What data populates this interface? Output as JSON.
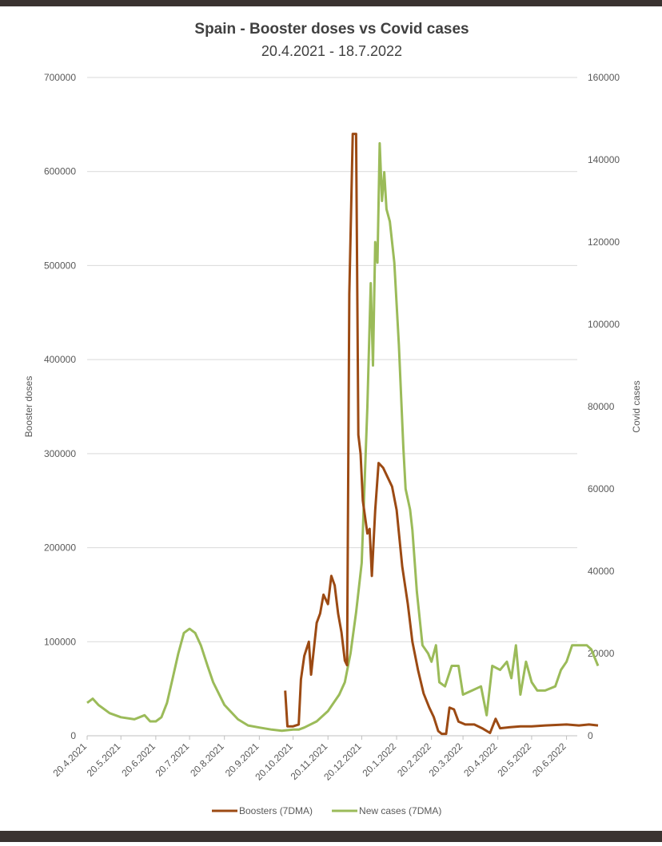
{
  "chart_data": {
    "type": "line",
    "title": "Spain - Booster doses vs Covid cases",
    "subtitle": "20.4.2021 - 18.7.2022",
    "y_label": "Booster doses",
    "y2_label": "Covid cases",
    "xlim": [
      "20.4.2021",
      "18.7.2022"
    ],
    "xticks": [
      "20.4.2021",
      "20.5.2021",
      "20.6.2021",
      "20.7.2021",
      "20.8.2021",
      "20.9.2021",
      "20.10.2021",
      "20.11.2021",
      "20.12.2021",
      "20.1.2022",
      "20.2.2022",
      "20.3.2022",
      "20.4.2022",
      "20.5.2022",
      "20.6.2022"
    ],
    "ylim": [
      0,
      700000
    ],
    "yticks": [
      0,
      100000,
      200000,
      300000,
      400000,
      500000,
      600000,
      700000
    ],
    "y2lim": [
      0,
      160000
    ],
    "y2ticks": [
      0,
      20000,
      40000,
      60000,
      80000,
      100000,
      120000,
      140000,
      160000
    ],
    "grid": true,
    "legend": "bottom",
    "series": [
      {
        "name": "Boosters (7DMA)",
        "color": "#9c4a13",
        "x": [
          "13.10.2021",
          "15.10.2021",
          "20.10.2021",
          "25.10.2021",
          "27.10.2021",
          "30.10.2021",
          "3.11.2021",
          "5.11.2021",
          "10.11.2021",
          "13.11.2021",
          "16.11.2021",
          "20.11.2021",
          "23.11.2021",
          "26.11.2021",
          "29.11.2021",
          "2.12.2021",
          "5.12.2021",
          "7.12.2021",
          "9.12.2021",
          "12.12.2021",
          "15.12.2021",
          "17.12.2021",
          "19.12.2021",
          "21.12.2021",
          "25.12.2021",
          "27.12.2021",
          "29.12.2021",
          "1.1.2022",
          "4.1.2022",
          "8.1.2022",
          "12.1.2022",
          "16.1.2022",
          "20.1.2022",
          "25.1.2022",
          "30.1.2022",
          "3.2.2022",
          "8.2.2022",
          "13.2.2022",
          "18.2.2022",
          "22.2.2022",
          "26.2.2022",
          "1.3.2022",
          "5.3.2022",
          "8.3.2022",
          "12.3.2022",
          "16.3.2022",
          "22.3.2022",
          "30.3.2022",
          "6.4.2022",
          "13.4.2022",
          "18.4.2022",
          "22.4.2022",
          "30.4.2022",
          "10.5.2022",
          "20.5.2022",
          "1.6.2022",
          "20.6.2022",
          "1.7.2022",
          "10.7.2022",
          "18.7.2022"
        ],
        "values": [
          48000,
          10000,
          10000,
          12000,
          60000,
          85000,
          100000,
          65000,
          120000,
          130000,
          150000,
          140000,
          170000,
          160000,
          130000,
          110000,
          80000,
          75000,
          470000,
          640000,
          640000,
          320000,
          300000,
          250000,
          215000,
          220000,
          170000,
          240000,
          290000,
          285000,
          275000,
          265000,
          240000,
          180000,
          140000,
          100000,
          70000,
          45000,
          30000,
          20000,
          5000,
          2000,
          2000,
          30000,
          28000,
          15000,
          12000,
          12000,
          8000,
          3000,
          18000,
          8000,
          9000,
          10000,
          10000,
          11000,
          12000,
          11000,
          12000,
          11000
        ]
      },
      {
        "name": "New cases (7DMA)",
        "color": "#9bbb59",
        "axis": "y2",
        "x": [
          "20.4.2021",
          "25.4.2021",
          "30.4.2021",
          "10.5.2021",
          "20.5.2021",
          "1.6.2021",
          "10.6.2021",
          "15.6.2021",
          "20.6.2021",
          "25.6.2021",
          "30.6.2021",
          "5.7.2021",
          "10.7.2021",
          "15.7.2021",
          "20.7.2021",
          "25.7.2021",
          "30.7.2021",
          "5.8.2021",
          "10.8.2021",
          "20.8.2021",
          "1.9.2021",
          "10.9.2021",
          "20.9.2021",
          "1.10.2021",
          "10.10.2021",
          "20.10.2021",
          "25.10.2021",
          "30.10.2021",
          "10.11.2021",
          "20.11.2021",
          "30.11.2021",
          "5.12.2021",
          "10.12.2021",
          "15.12.2021",
          "20.12.2021",
          "25.12.2021",
          "28.12.2021",
          "30.12.2021",
          "1.1.2022",
          "3.1.2022",
          "5.1.2022",
          "7.1.2022",
          "9.1.2022",
          "11.1.2022",
          "14.1.2022",
          "18.1.2022",
          "22.1.2022",
          "26.1.2022",
          "28.1.2022",
          "1.2.2022",
          "3.2.2022",
          "7.2.2022",
          "12.2.2022",
          "17.2.2022",
          "20.2.2022",
          "24.2.2022",
          "27.2.2022",
          "4.3.2022",
          "10.3.2022",
          "16.3.2022",
          "20.3.2022",
          "28.3.2022",
          "5.4.2022",
          "10.4.2022",
          "15.4.2022",
          "22.4.2022",
          "28.4.2022",
          "2.5.2022",
          "6.5.2022",
          "10.5.2022",
          "15.5.2022",
          "20.5.2022",
          "25.5.2022",
          "1.6.2022",
          "10.6.2022",
          "15.6.2022",
          "20.6.2022",
          "25.6.2022",
          "1.7.2022",
          "8.7.2022",
          "12.7.2022",
          "18.7.2022"
        ],
        "values": [
          8000,
          9000,
          7500,
          5500,
          4500,
          4000,
          5000,
          3500,
          3500,
          4500,
          8000,
          14000,
          20000,
          25000,
          26000,
          25000,
          22000,
          17000,
          13000,
          7500,
          4000,
          2500,
          2000,
          1500,
          1200,
          1500,
          1500,
          2000,
          3500,
          6000,
          10000,
          13000,
          20000,
          30000,
          42000,
          80000,
          110000,
          90000,
          120000,
          115000,
          144000,
          130000,
          137000,
          128000,
          125000,
          115000,
          95000,
          70000,
          60000,
          55000,
          50000,
          35000,
          22000,
          20000,
          18000,
          22000,
          13000,
          12000,
          17000,
          17000,
          10000,
          11000,
          12000,
          5000,
          17000,
          16000,
          18000,
          14000,
          22000,
          10000,
          18000,
          13000,
          11000,
          11000,
          12000,
          16000,
          18000,
          22000,
          22000,
          22000,
          21000,
          17000
        ]
      }
    ]
  }
}
